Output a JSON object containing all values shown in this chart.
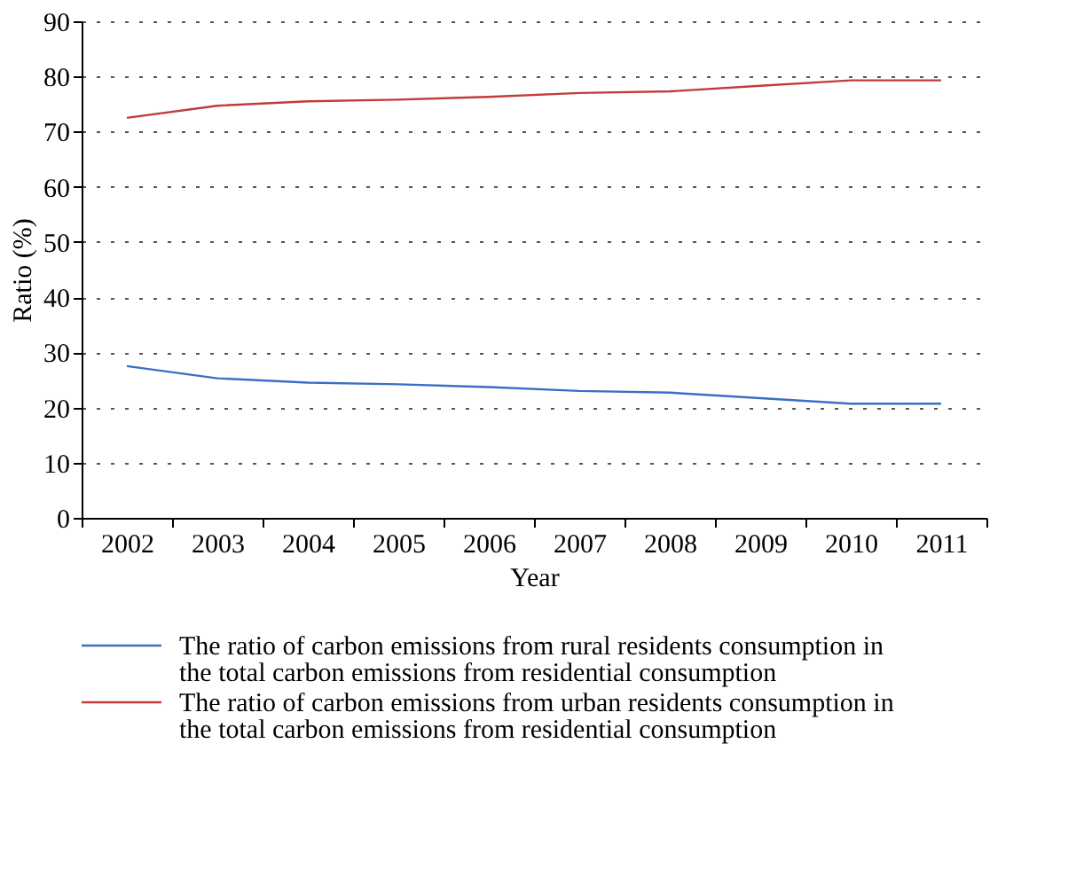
{
  "chart_data": {
    "type": "line",
    "xlabel": "Year",
    "ylabel": "Ratio (%)",
    "categories": [
      "2002",
      "2003",
      "2004",
      "2005",
      "2006",
      "2007",
      "2008",
      "2009",
      "2010",
      "2011"
    ],
    "series": [
      {
        "name": "The ratio of carbon emissions from rural residents consumption in the total carbon emissions from residential consumption",
        "color": "#3a6fc4",
        "values": [
          27.5,
          25.3,
          24.5,
          24.2,
          23.7,
          23.0,
          22.7,
          21.7,
          20.7,
          20.7
        ]
      },
      {
        "name": "The ratio of carbon emissions from urban residents consumption in the total carbon emissions from residential consumption",
        "color": "#c23b3b",
        "values": [
          72.5,
          74.7,
          75.5,
          75.8,
          76.3,
          77.0,
          77.3,
          78.3,
          79.3,
          79.3
        ]
      }
    ],
    "ylim": [
      0,
      90
    ],
    "yticks": [
      0,
      10,
      20,
      30,
      40,
      50,
      60,
      70,
      80,
      90
    ],
    "grid": "y",
    "legend": "bottom",
    "marker": "none",
    "line_style": "solid"
  }
}
